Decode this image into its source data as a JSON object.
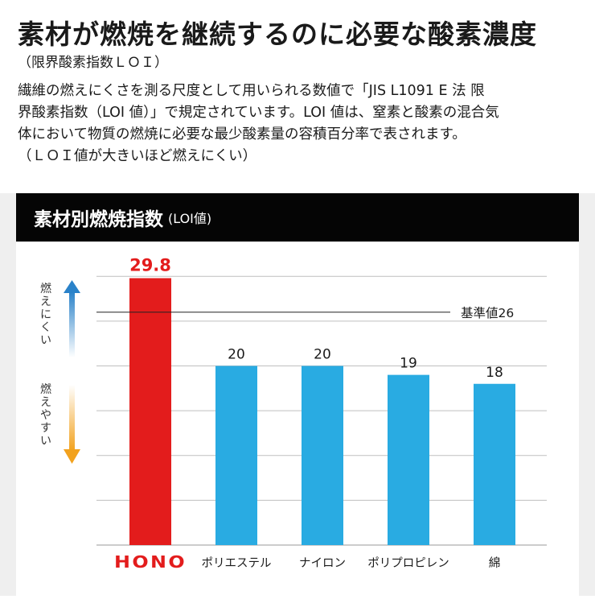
{
  "header": {
    "title": "素材が燃焼を継続するのに必要な酸素濃度",
    "subtitle": "（限界酸素指数ＬＯＩ）"
  },
  "description": {
    "line1": "繊維の燃えにくさを測る尺度として用いられる数値で「JIS L1091 E 法 限",
    "line2": "界酸素指数（LOI 値）」で規定されています。LOI 値は、窒素と酸素の混合気",
    "line3": "体において物質の燃焼に必要な最少酸素量の容積百分率で表されます。",
    "line4": "（ＬＯＩ値が大きいほど燃えにくい）"
  },
  "panel": {
    "title": "素材別燃焼指数",
    "unit": "(LOI値)"
  },
  "axis": {
    "up_label": "燃えにくい",
    "down_label": "燃えやすい"
  },
  "colors": {
    "highlight": "#e31c1c",
    "bar": "#29abe2",
    "up_arrow": "#2a82c9",
    "down_arrow": "#f2a21e",
    "header_bg": "#050505"
  },
  "chart_data": {
    "type": "bar",
    "categories": [
      "HONO",
      "ポリエステル",
      "ナイロン",
      "ポリプロピレン",
      "綿"
    ],
    "values": [
      29.8,
      20,
      20,
      19,
      18
    ],
    "value_labels": [
      "29.8",
      "20",
      "20",
      "19",
      "18"
    ],
    "highlight_index": 0,
    "reference_line": {
      "value": 26,
      "label": "基準値26"
    },
    "ylim": [
      0,
      32
    ],
    "gridlines": [
      5,
      10,
      15,
      20,
      25,
      30
    ],
    "grid": true,
    "xlabel": "",
    "ylabel": ""
  }
}
